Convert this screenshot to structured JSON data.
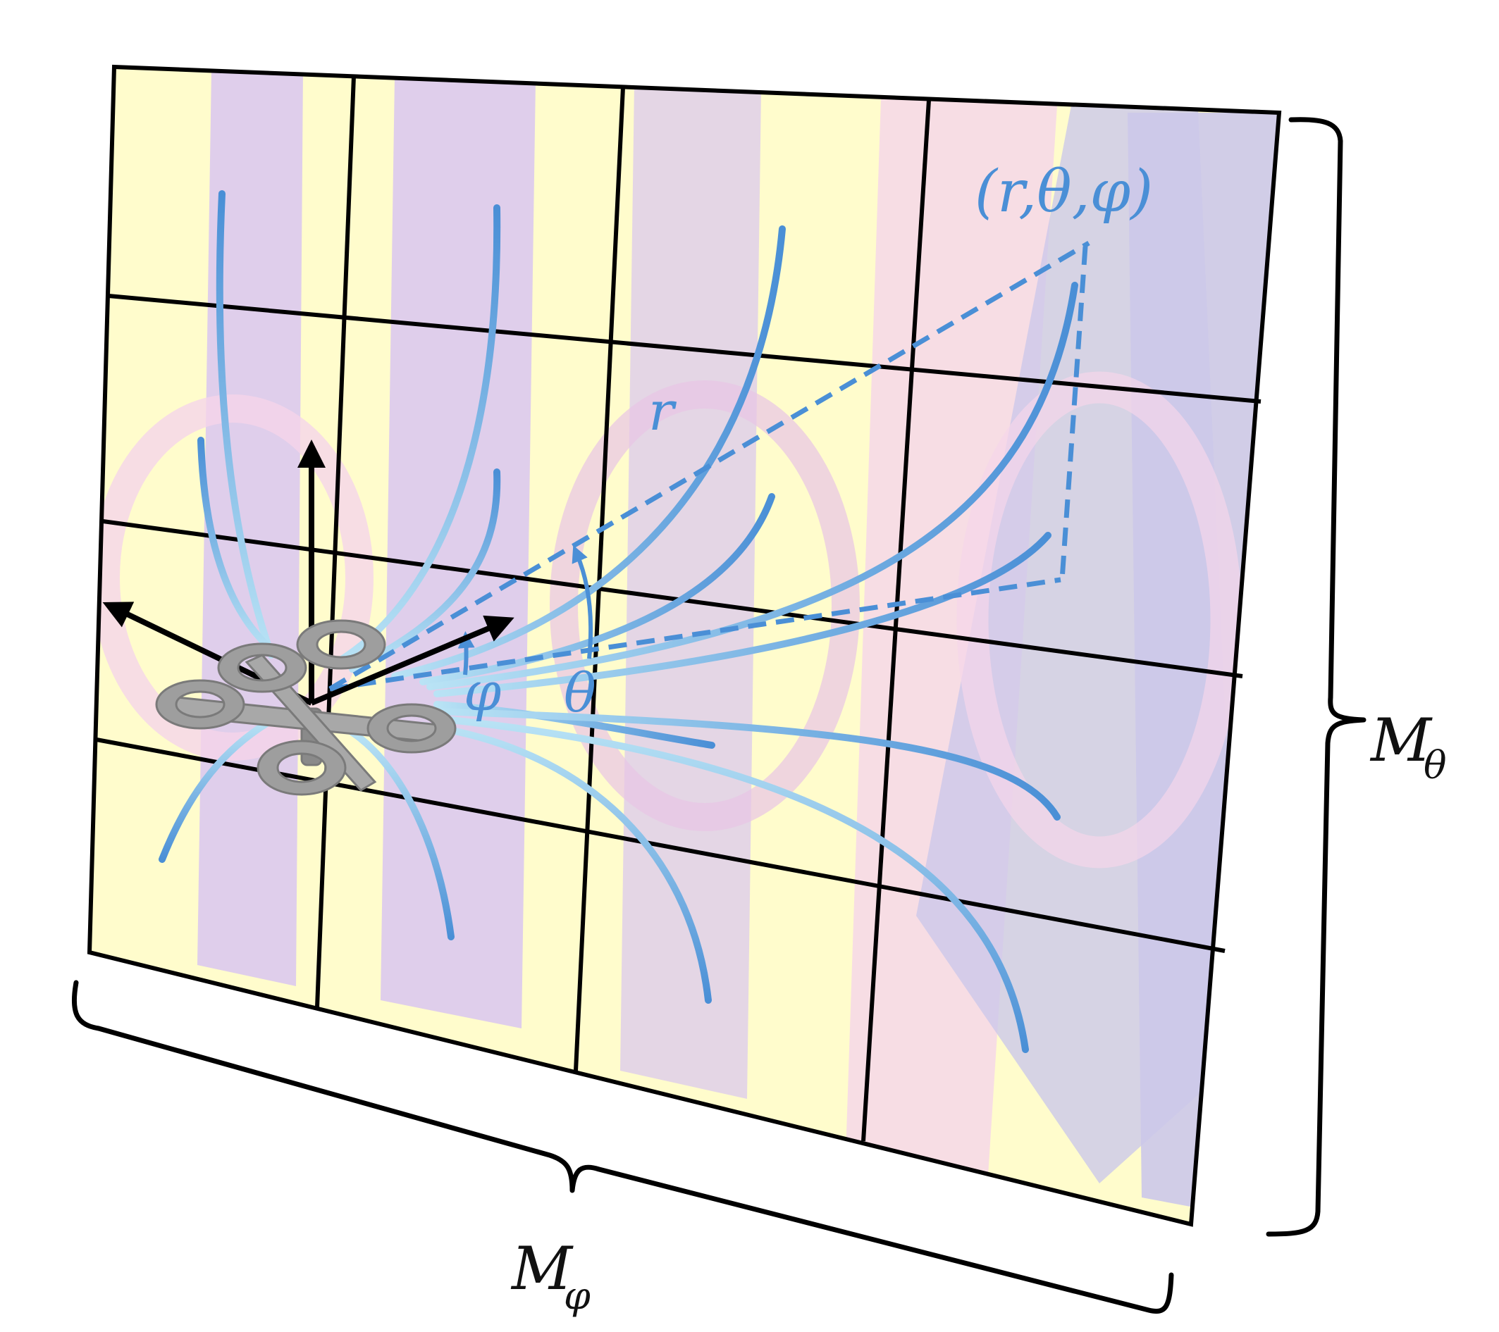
{
  "labels": {
    "point": "(r,θ,φ)",
    "r": "r",
    "theta": "θ",
    "phi": "φ",
    "m_theta_main": "M",
    "m_theta_sub": "θ",
    "m_phi_main": "M",
    "m_phi_sub": "φ"
  },
  "colors": {
    "accent_blue": "#4a8fd6",
    "light_blue": "#a8d8f0",
    "plane_yellow": "#fffccc",
    "plane_purple": "#d9c6f0",
    "plane_pink": "#f5d5ea",
    "plane_lavender": "#ccc8ea",
    "drone_gray": "#a8a8a8"
  },
  "icons": {
    "drone": "quadcopter-icon",
    "axes": "coordinate-axes-icon"
  }
}
